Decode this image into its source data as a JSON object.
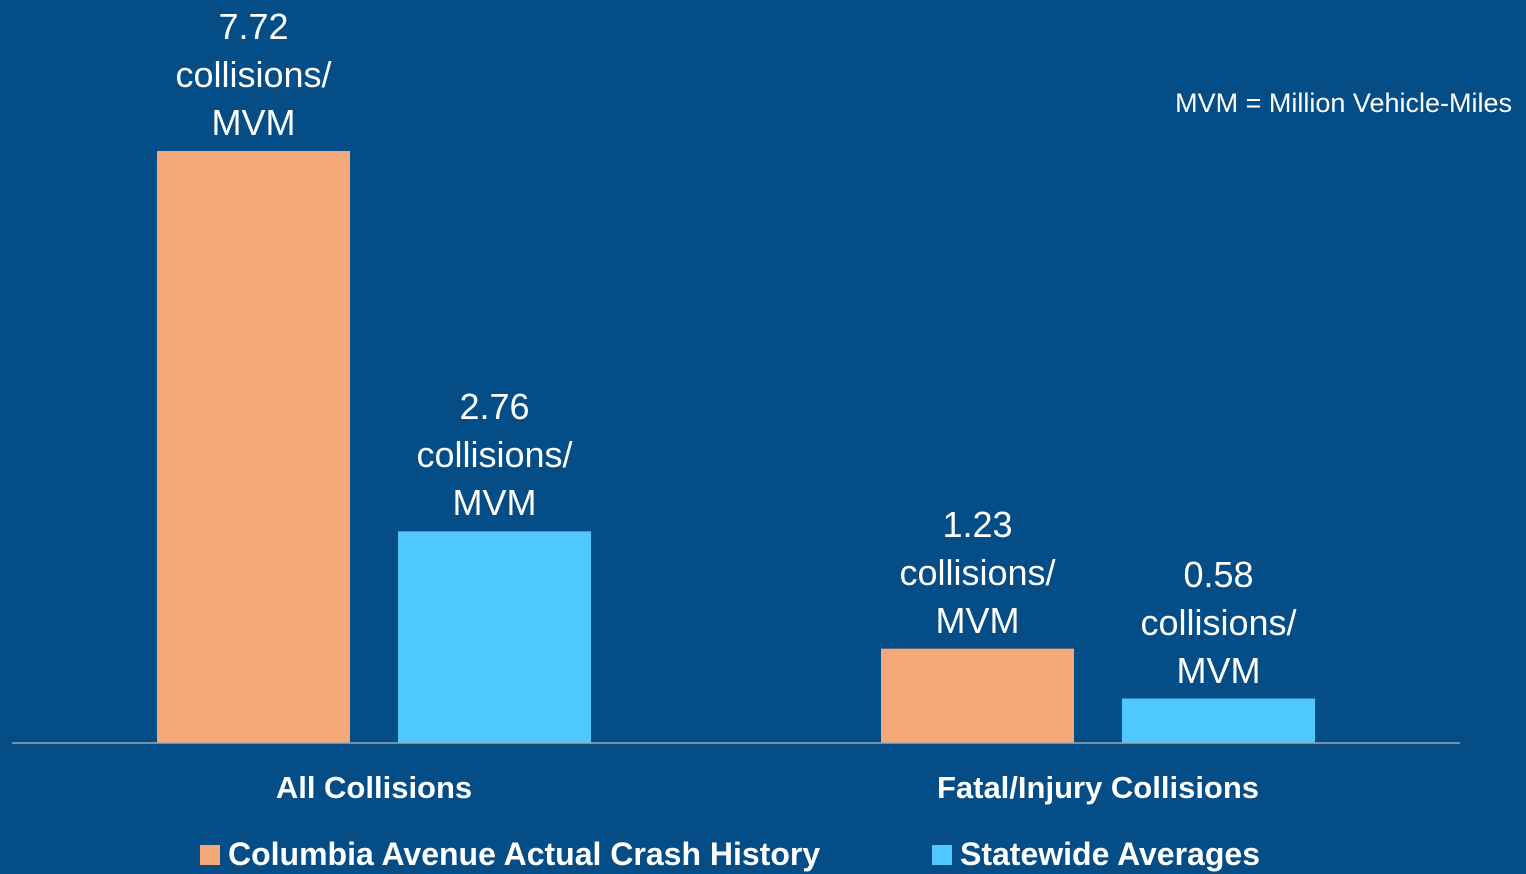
{
  "chart_data": {
    "type": "bar",
    "categories": [
      "All Collisions",
      "Fatal/Injury Collisions"
    ],
    "series": [
      {
        "name": "Columbia Avenue Actual Crash History",
        "color": "#f5a878",
        "values": [
          7.72,
          1.23
        ],
        "value_labels": [
          "7.72\ncollisions/\nMVM",
          "1.23\ncollisions/\nMVM"
        ]
      },
      {
        "name": "Statewide Averages",
        "color": "#4fc8ff",
        "values": [
          2.76,
          0.58
        ],
        "value_labels": [
          "2.76\ncollisions/\nMVM",
          "0.58\ncollisions/\nMVM"
        ]
      }
    ],
    "annotations": [
      "MVM = Million Vehicle-Miles"
    ],
    "legend": "bottom"
  }
}
